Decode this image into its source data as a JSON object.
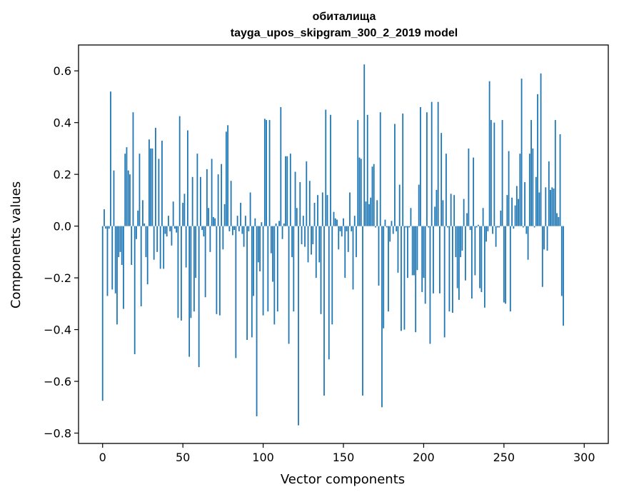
{
  "chart_data": {
    "type": "bar",
    "title": "обиталища",
    "subtitle": "tayga_upos_skipgram_300_2_2019 model",
    "xlabel": "Vector components",
    "ylabel": "Components values",
    "xlim": [
      -15,
      315
    ],
    "ylim": [
      -0.84,
      0.7
    ],
    "xticks": [
      0,
      50,
      100,
      150,
      200,
      250,
      300
    ],
    "xtick_labels": [
      "0",
      "50",
      "100",
      "150",
      "200",
      "250",
      "300"
    ],
    "yticks": [
      -0.8,
      -0.6,
      -0.4,
      -0.2,
      0.0,
      0.2,
      0.4,
      0.6
    ],
    "ytick_labels": [
      "−0.8",
      "−0.6",
      "−0.4",
      "−0.2",
      "0.0",
      "0.2",
      "0.4",
      "0.6"
    ],
    "grid": false,
    "bar_color": "#1f77b4",
    "series": [
      {
        "values": [
          -0.675,
          0.065,
          -0.01,
          -0.27,
          -0.01,
          0.52,
          -0.245,
          0.215,
          -0.26,
          -0.38,
          -0.12,
          -0.1,
          -0.15,
          -0.32,
          0.28,
          0.305,
          0.215,
          0.2,
          -0.15,
          0.44,
          -0.495,
          -0.05,
          0.06,
          0.28,
          -0.31,
          0.1,
          0.01,
          -0.12,
          -0.225,
          0.335,
          0.3,
          0.3,
          -0.13,
          0.38,
          -0.1,
          0.26,
          -0.165,
          0.33,
          -0.165,
          -0.03,
          -0.04,
          0.04,
          -0.02,
          -0.075,
          0.095,
          -0.01,
          -0.025,
          -0.355,
          0.425,
          -0.365,
          0.09,
          0.125,
          -0.16,
          0.37,
          -0.505,
          -0.355,
          0.19,
          -0.33,
          -0.2,
          0.28,
          -0.545,
          0.19,
          -0.015,
          -0.04,
          -0.275,
          0.22,
          0.07,
          -0.1,
          0.26,
          0.035,
          0.03,
          -0.34,
          0.2,
          -0.345,
          0.24,
          -0.09,
          0.085,
          0.365,
          0.39,
          -0.02,
          0.175,
          -0.035,
          -0.015,
          -0.51,
          0.04,
          -0.02,
          0.09,
          -0.03,
          -0.08,
          0.04,
          -0.44,
          -0.02,
          0.13,
          -0.43,
          -0.27,
          0.03,
          -0.735,
          -0.14,
          -0.175,
          0.015,
          -0.345,
          0.415,
          0.41,
          -0.33,
          0.41,
          -0.105,
          -0.215,
          -0.38,
          0.01,
          -0.33,
          0.02,
          0.46,
          -0.05,
          0.01,
          0.27,
          0.27,
          -0.455,
          0.28,
          -0.12,
          -0.33,
          0.21,
          0.07,
          -0.77,
          0.17,
          -0.07,
          0.04,
          -0.08,
          0.25,
          -0.14,
          0.175,
          -0.11,
          -0.07,
          0.09,
          -0.2,
          0.12,
          -0.14,
          -0.34,
          0.13,
          -0.655,
          0.45,
          0.12,
          -0.515,
          0.43,
          -0.38,
          0.055,
          0.03,
          0.025,
          -0.09,
          -0.02,
          -0.04,
          0.03,
          -0.2,
          -0.02,
          -0.1,
          0.13,
          -0.02,
          -0.245,
          0.04,
          -0.12,
          0.41,
          0.265,
          0.26,
          -0.655,
          0.625,
          0.095,
          0.43,
          0.085,
          0.11,
          0.23,
          0.24,
          -0.005,
          0.1,
          -0.23,
          0.44,
          -0.7,
          -0.395,
          0.025,
          -0.005,
          -0.33,
          -0.06,
          0.02,
          -0.03,
          0.395,
          -0.02,
          -0.18,
          0.16,
          -0.405,
          0.435,
          -0.4,
          -0.005,
          -0.2,
          -0.005,
          0.07,
          -0.19,
          -0.19,
          -0.41,
          -0.17,
          0.16,
          0.46,
          -0.255,
          -0.2,
          -0.3,
          0.44,
          -0.005,
          -0.455,
          0.48,
          -0.26,
          0.075,
          0.14,
          0.48,
          -0.26,
          0.36,
          0.1,
          -0.43,
          0.28,
          -0.005,
          -0.33,
          0.125,
          -0.335,
          0.12,
          -0.12,
          -0.24,
          -0.285,
          -0.12,
          -0.095,
          0.105,
          -0.21,
          0.05,
          0.3,
          -0.015,
          -0.28,
          0.265,
          -0.19,
          -0.005,
          0.005,
          -0.24,
          -0.255,
          0.07,
          -0.315,
          -0.06,
          -0.02,
          0.56,
          0.41,
          -0.03,
          0.4,
          -0.08,
          -0.005,
          -0.005,
          0.06,
          0.41,
          -0.295,
          -0.3,
          0.12,
          0.29,
          -0.33,
          0.11,
          -0.01,
          0.08,
          0.155,
          0.105,
          0.28,
          0.57,
          -0.005,
          0.17,
          -0.03,
          -0.13,
          0.28,
          0.41,
          0.3,
          -0.005,
          0.19,
          0.51,
          0.13,
          0.59,
          -0.235,
          -0.09,
          0.15,
          -0.095,
          0.25,
          0.14,
          0.15,
          0.145,
          0.41,
          0.05,
          0.035,
          0.355,
          -0.27,
          -0.385
        ]
      }
    ]
  }
}
